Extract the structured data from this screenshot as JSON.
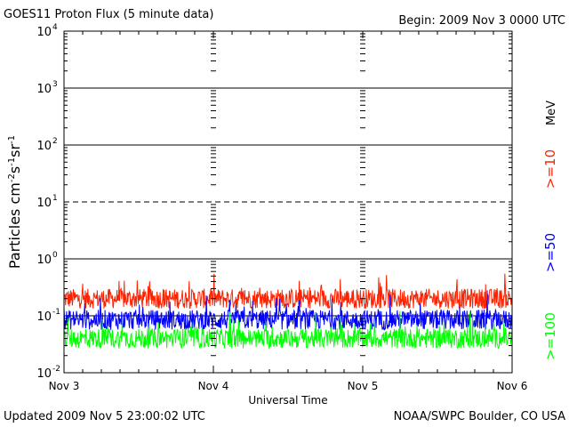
{
  "header": {
    "title": "GOES11 Proton Flux (5 minute data)",
    "begin": "Begin: 2009 Nov 3 0000 UTC"
  },
  "footer": {
    "updated": "Updated 2009 Nov  5 23:00:02 UTC",
    "source": "NOAA/SWPC Boulder, CO USA"
  },
  "colors": {
    "series_10": "#ff2200",
    "series_50": "#0000ff",
    "series_100": "#00ff00",
    "axis": "#000000"
  },
  "chart_data": {
    "type": "line",
    "xlabel": "Universal Time",
    "ylabel": "Particles cm⁻²s⁻¹sr⁻¹",
    "ylabel_parts": {
      "base": "Particles cm",
      "e1": "-2",
      "m1": "s",
      "e2": "-1",
      "m2": "sr",
      "e3": "-1"
    },
    "x_ticks": [
      "Nov 3",
      "Nov 4",
      "Nov 5",
      "Nov 6"
    ],
    "x_range_days": [
      0,
      3
    ],
    "y_scale": "log",
    "y_range": [
      0.01,
      10000
    ],
    "y_ticks": [
      {
        "base": "10",
        "exp": "-2",
        "value": 0.01
      },
      {
        "base": "10",
        "exp": "-1",
        "value": 0.1
      },
      {
        "base": "10",
        "exp": "0",
        "value": 1
      },
      {
        "base": "10",
        "exp": "1",
        "value": 10
      },
      {
        "base": "10",
        "exp": "2",
        "value": 100
      },
      {
        "base": "10",
        "exp": "3",
        "value": 1000
      },
      {
        "base": "10",
        "exp": "4",
        "value": 10000
      }
    ],
    "threshold_line": 10,
    "unit_label": "MeV",
    "series": [
      {
        "name": ">=10",
        "mean": 0.2,
        "min": 0.12,
        "max": 0.55
      },
      {
        "name": ">=50",
        "mean": 0.085,
        "min": 0.05,
        "max": 0.3
      },
      {
        "name": ">=100",
        "mean": 0.04,
        "min": 0.025,
        "max": 0.12
      }
    ]
  }
}
